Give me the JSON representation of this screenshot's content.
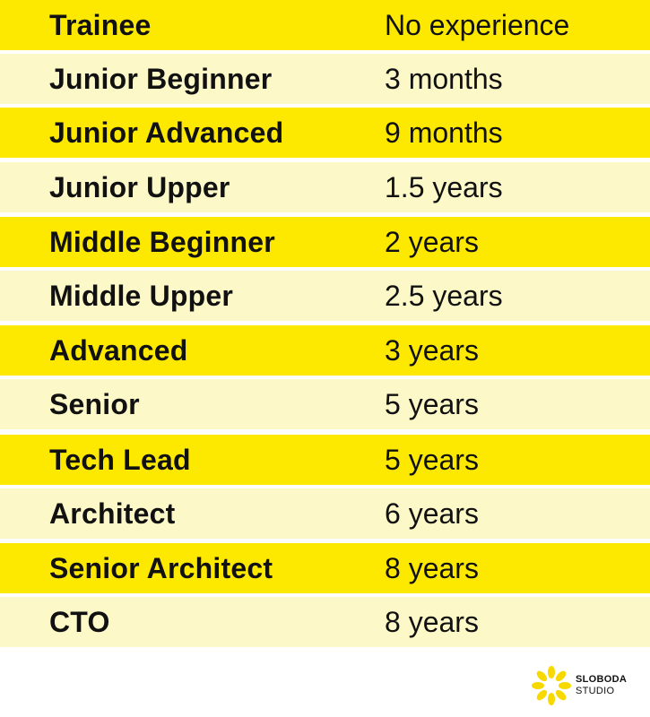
{
  "rows": [
    {
      "role": "Trainee",
      "experience": "No experience",
      "shade": "dark"
    },
    {
      "role": "Junior Beginner",
      "experience": "3 months",
      "shade": "light"
    },
    {
      "role": "Junior Advanced",
      "experience": "9 months",
      "shade": "dark"
    },
    {
      "role": "Junior Upper",
      "experience": "1.5 years",
      "shade": "light"
    },
    {
      "role": "Middle Beginner",
      "experience": "2 years",
      "shade": "dark"
    },
    {
      "role": "Middle Upper",
      "experience": "2.5 years",
      "shade": "light"
    },
    {
      "role": "Advanced",
      "experience": "3 years",
      "shade": "dark"
    },
    {
      "role": "Senior",
      "experience": "5 years",
      "shade": "light"
    },
    {
      "role": "Tech Lead",
      "experience": "5 years",
      "shade": "dark"
    },
    {
      "role": "Architect",
      "experience": "6 years",
      "shade": "light"
    },
    {
      "role": "Senior Architect",
      "experience": "8 years",
      "shade": "dark"
    },
    {
      "role": "CTO",
      "experience": "8 years",
      "shade": "light"
    }
  ],
  "logo": {
    "line1": "SLOBODA",
    "line2": "STUDIO",
    "icon": "flower-burst-icon"
  },
  "colors": {
    "dark_row": "#fde800",
    "light_row": "#fdf8c7",
    "text": "#111111",
    "logo_accent": "#f7d900"
  }
}
